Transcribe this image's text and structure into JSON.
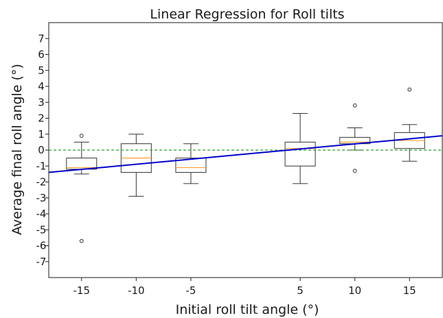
{
  "chart_data": {
    "type": "box",
    "title": "Linear Regression for Roll tilts",
    "xlabel": "Initial roll tilt angle (°)",
    "ylabel": "Average final roll angle (°)",
    "x_ticks": [
      "-15",
      "-10",
      "-5",
      "5",
      "10",
      "15"
    ],
    "y_ticks": [
      "-7",
      "-6",
      "-5",
      "-4",
      "-3",
      "-2",
      "-1",
      "0",
      "1",
      "2",
      "3",
      "4",
      "5",
      "6",
      "7"
    ],
    "xlim": [
      -18,
      18
    ],
    "ylim": [
      -8,
      8
    ],
    "grid": false,
    "boxes": [
      {
        "x": -15,
        "whisker_low": -1.5,
        "q1": -1.2,
        "median": -1.1,
        "q3": -0.5,
        "whisker_high": 0.5,
        "outliers": [
          0.9,
          -5.7
        ]
      },
      {
        "x": -10,
        "whisker_low": -2.9,
        "q1": -1.4,
        "median": -0.5,
        "q3": 0.4,
        "whisker_high": 1.0,
        "outliers": []
      },
      {
        "x": -5,
        "whisker_low": -2.1,
        "q1": -1.4,
        "median": -1.1,
        "q3": -0.5,
        "whisker_high": 0.4,
        "outliers": []
      },
      {
        "x": 5,
        "whisker_low": -2.1,
        "q1": -1.0,
        "median": 0.1,
        "q3": 0.5,
        "whisker_high": 2.3,
        "outliers": []
      },
      {
        "x": 10,
        "whisker_low": 0.0,
        "q1": 0.4,
        "median": 0.5,
        "q3": 0.8,
        "whisker_high": 1.4,
        "outliers": [
          2.8,
          -1.3
        ]
      },
      {
        "x": 15,
        "whisker_low": -0.7,
        "q1": 0.1,
        "median": 0.6,
        "q3": 1.1,
        "whisker_high": 1.6,
        "outliers": [
          3.8
        ]
      }
    ],
    "regression_line": {
      "x": [
        -18,
        18
      ],
      "y": [
        -1.4,
        0.9
      ],
      "color": "#0000cc"
    },
    "reference_line": {
      "y": 0,
      "color": "#2ca02c",
      "style": "dashed"
    },
    "colors": {
      "box": "#333333",
      "median": "#ff9f33",
      "outlier": "#333333"
    }
  }
}
